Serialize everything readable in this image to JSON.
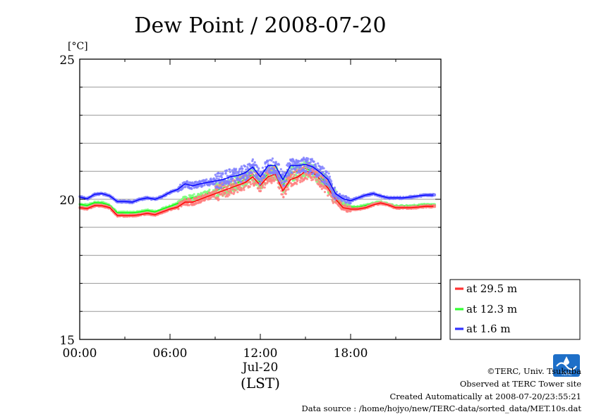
{
  "chart_data": {
    "type": "line",
    "title": "Dew Point / 2008-07-20",
    "ylabel": "[°C]",
    "xlabel": "(LST)",
    "date_label": "Jul-20",
    "ylim": [
      15,
      25
    ],
    "xlim_hours": [
      0,
      24
    ],
    "y_ticks": [
      "15",
      "20",
      "25"
    ],
    "x_ticks": [
      {
        "hour": 0,
        "label": "00:00"
      },
      {
        "hour": 6,
        "label": "06:00"
      },
      {
        "hour": 12,
        "label": "12:00"
      },
      {
        "hour": 18,
        "label": "18:00"
      }
    ],
    "grid": true,
    "legend_position": "bottom-right-outside",
    "x_hours": [
      0,
      0.5,
      1,
      1.5,
      2,
      2.5,
      3,
      3.5,
      4,
      4.5,
      5,
      5.5,
      6,
      6.5,
      7,
      7.5,
      8,
      8.5,
      9,
      9.5,
      10,
      10.5,
      11,
      11.5,
      12,
      12.5,
      13,
      13.5,
      14,
      14.5,
      15,
      15.5,
      16,
      16.5,
      17,
      17.5,
      18,
      18.5,
      19,
      19.5,
      20,
      20.5,
      21,
      21.5,
      22,
      22.5,
      23,
      23.5
    ],
    "series": [
      {
        "name": "at 29.5 m",
        "color": "#ff0000",
        "values": [
          19.7,
          19.67,
          19.78,
          19.77,
          19.7,
          19.42,
          19.42,
          19.42,
          19.45,
          19.5,
          19.45,
          19.55,
          19.65,
          19.72,
          19.9,
          19.9,
          20.0,
          20.1,
          20.2,
          20.3,
          20.4,
          20.5,
          20.6,
          20.8,
          20.5,
          20.8,
          20.9,
          20.3,
          20.7,
          20.8,
          21.0,
          20.95,
          20.7,
          20.4,
          20.0,
          19.7,
          19.65,
          19.65,
          19.7,
          19.8,
          19.87,
          19.8,
          19.7,
          19.7,
          19.7,
          19.72,
          19.75,
          19.75
        ]
      },
      {
        "name": "at 12.3 m",
        "color": "#00ff00",
        "values": [
          19.82,
          19.78,
          19.88,
          19.87,
          19.78,
          19.52,
          19.52,
          19.52,
          19.55,
          19.6,
          19.55,
          19.65,
          19.75,
          19.85,
          20.0,
          20.05,
          20.1,
          20.2,
          20.3,
          20.4,
          20.5,
          20.6,
          20.7,
          20.9,
          20.6,
          20.9,
          21.0,
          20.5,
          20.9,
          21.0,
          21.1,
          21.0,
          20.8,
          20.5,
          20.05,
          19.78,
          19.72,
          19.72,
          19.78,
          19.85,
          19.9,
          19.82,
          19.75,
          19.75,
          19.75,
          19.78,
          19.8,
          19.8
        ]
      },
      {
        "name": "at 1.6 m",
        "color": "#0000ff",
        "values": [
          20.08,
          20.02,
          20.18,
          20.2,
          20.12,
          19.92,
          19.92,
          19.9,
          20.0,
          20.05,
          20.0,
          20.1,
          20.25,
          20.35,
          20.55,
          20.48,
          20.55,
          20.6,
          20.65,
          20.7,
          20.8,
          20.85,
          20.95,
          21.15,
          20.8,
          21.2,
          21.2,
          20.7,
          21.2,
          21.2,
          21.25,
          21.15,
          20.95,
          20.7,
          20.2,
          20.02,
          19.95,
          20.05,
          20.15,
          20.2,
          20.12,
          20.05,
          20.05,
          20.05,
          20.08,
          20.12,
          20.15,
          20.15
        ]
      }
    ]
  },
  "credits": {
    "copyright": "©TERC, Univ. Tsukuba",
    "observed": "Observed at TERC Tower site",
    "created": "Created Automatically at 2008-07-20/23:55:21",
    "source": "Data source : /home/hojyo/new/TERC-data/sorted_data/MET.10s.dat",
    "logo_text": "TERC"
  }
}
